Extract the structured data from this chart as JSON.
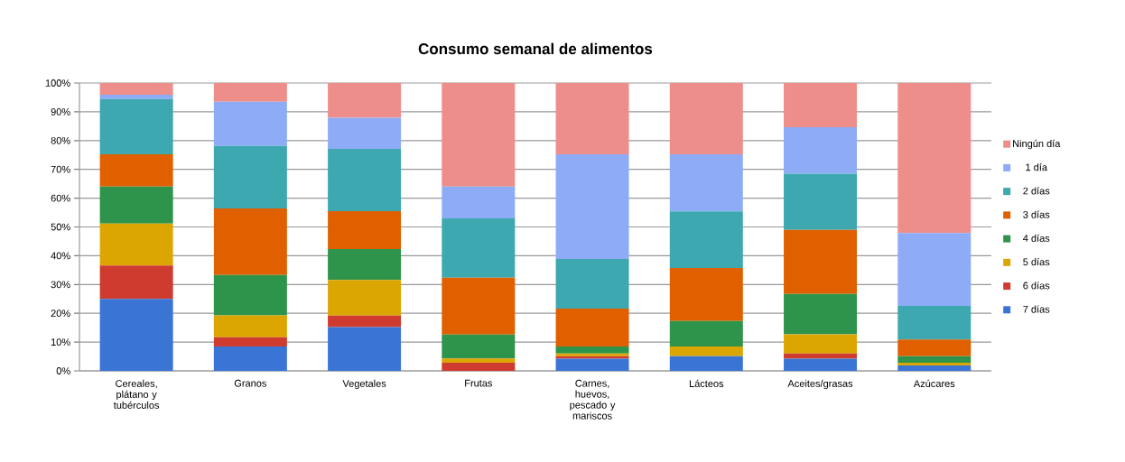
{
  "chart_data": {
    "type": "bar",
    "title": "Consumo semanal de alimentos",
    "stacked": true,
    "grid": "y",
    "legend": "right",
    "categories": [
      "Cereales, plátano y tubérculos",
      "Granos",
      "Vegetales",
      "Frutas",
      "Carnes, huevos, pescado y mariscos",
      "Lácteos",
      "Aceites/grasas",
      "Azúcares"
    ],
    "ylim": [
      0,
      100
    ],
    "yticks": [
      {
        "value": 0,
        "label": "0%"
      },
      {
        "value": 10,
        "label": "10%"
      },
      {
        "value": 20,
        "label": "20%"
      },
      {
        "value": 30,
        "label": "30%"
      },
      {
        "value": 40,
        "label": "40%"
      },
      {
        "value": 50,
        "label": "50%"
      },
      {
        "value": 60,
        "label": "60%"
      },
      {
        "value": 70,
        "label": "70%"
      },
      {
        "value": 80,
        "label": "80%"
      },
      {
        "value": 90,
        "label": "90%"
      },
      {
        "value": 100,
        "label": "100%"
      }
    ],
    "series": [
      {
        "name": "7 días",
        "color": "#3a75d6",
        "values": [
          25,
          8.5,
          15.2,
          0,
          4.2,
          5.1,
          4.2,
          1.9
        ]
      },
      {
        "name": "6 días",
        "color": "#cf3b2f",
        "values": [
          11.6,
          3.2,
          4.0,
          2.8,
          0.9,
          0,
          1.8,
          0
        ]
      },
      {
        "name": "5 días",
        "color": "#dca602",
        "values": [
          14.6,
          7.6,
          12.4,
          1.5,
          0.9,
          3.4,
          6.7,
          0.9
        ]
      },
      {
        "name": "4 días",
        "color": "#2e944b",
        "values": [
          12.8,
          14.0,
          10.7,
          8.3,
          2.5,
          8.8,
          14.0,
          2.3
        ]
      },
      {
        "name": "3 días",
        "color": "#e06000",
        "values": [
          11.2,
          23.1,
          13.2,
          19.8,
          13.1,
          18.4,
          22.3,
          5.8
        ]
      },
      {
        "name": "2 días",
        "color": "#3da8b0",
        "values": [
          19.2,
          21.7,
          21.6,
          20.6,
          17.3,
          19.7,
          19.5,
          11.7
        ]
      },
      {
        "name": "1 día",
        "color": "#8eacf6",
        "values": [
          1.5,
          15.4,
          10.8,
          11.0,
          36.3,
          19.8,
          16.1,
          25.3
        ]
      },
      {
        "name": "Ningún día",
        "color": "#ee8e8a",
        "values": [
          4.1,
          6.5,
          12.1,
          36.0,
          24.8,
          24.8,
          15.4,
          52.1
        ]
      }
    ]
  }
}
